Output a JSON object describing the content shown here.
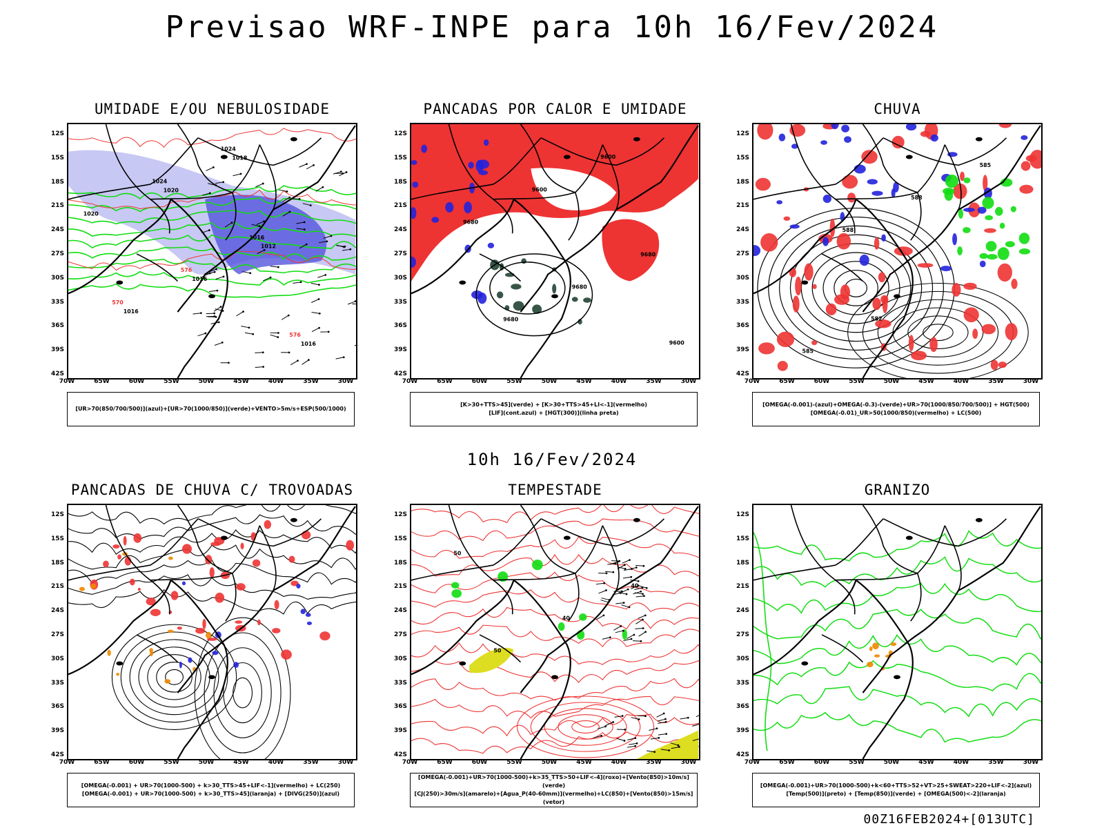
{
  "title": "Previsao WRF-INPE  para 10h 16/Fev/2024",
  "subtitle": "10h 16/Fev/2024",
  "footer": "00Z16FEB2024+[013UTC]",
  "axes": {
    "lat_labels": [
      "12S",
      "15S",
      "18S",
      "21S",
      "24S",
      "27S",
      "30S",
      "33S",
      "36S",
      "39S",
      "42S"
    ],
    "lon_labels": [
      "70W",
      "65W",
      "60W",
      "55W",
      "50W",
      "45W",
      "40W",
      "35W",
      "30W"
    ]
  },
  "colors": {
    "blue": "#2222dd",
    "light_blue": "#9999ee",
    "green": "#11dd11",
    "red": "#ee3333",
    "orange": "#ee8800",
    "yellow": "#dddd22",
    "dark_green": "#224433"
  },
  "panels": [
    {
      "title": "UMIDADE E/OU NEBULOSIDADE",
      "legend": [
        "[UR>70(850/700/500)](azul)+[UR>70(1000/850)](verde)+VENTO>5m/s+ESP(500/1000)"
      ],
      "contour_labels": [
        "1020",
        "1018",
        "1016",
        "1016",
        "1016",
        "1012",
        "1020",
        "1024",
        "1024",
        "576",
        "570",
        "576",
        "1016"
      ]
    },
    {
      "title": "PANCADAS POR CALOR E UMIDADE",
      "legend": [
        "[K>30+TTS>45](verde) + [K>30+TTS>45+LI<-1](vermelho)",
        "[LIF](cont.azul) + [HGT(300)](linha preta)"
      ],
      "contour_labels": [
        "9680",
        "9680",
        "9680",
        "9680",
        "9600",
        "9600",
        "9600"
      ]
    },
    {
      "title": "CHUVA",
      "legend": [
        "[OMEGA(-0.001)-(azul)+OMEGA(-0.3)-(verde)+UR>70(1000/850/700/500)] + HGT(500)",
        "[OMEGA(-0.01)_UR>50(1000/850)(vermelho) + LC(500)"
      ],
      "contour_labels": [
        "588",
        "588",
        "585",
        "585",
        "582"
      ]
    },
    {
      "title": "PANCADAS DE CHUVA C/ TROVOADAS",
      "legend": [
        "[OMEGA(-0.001) + UR>70(1000-500) + k>30_TTS>45+LIF<-1](vermelho) + LC(250)",
        "[OMEGA(-0.001) + UR>70(1000-500) + k>30_TTS>45](laranja) + [DIVG(250)](azul)"
      ],
      "contour_labels": []
    },
    {
      "title": "TEMPESTADE",
      "legend": [
        "[OMEGA(-0.001)+UR>70(1000-500)+k>35_TTS>50+LIF<-4](roxo)+[Vento(850)>10m/s](verde)",
        "[CJ(250)>30m/s](amarelo)+[Agua_P(40-60mm)](vermelho)+LC(850)+[Vento(850)>15m/s](vetor)"
      ],
      "contour_labels": [
        "50",
        "40",
        "40",
        "50"
      ]
    },
    {
      "title": "GRANIZO",
      "legend": [
        "[OMEGA(-0.001)+UR>70(1000-500)+k<60+TTS>52+VT>25+SWEAT>220+LIF<-2](azul)",
        "[Temp(500)](preto) + [Temp(850)](verde) + [OMEGA(500)<-2](laranja)"
      ],
      "contour_labels": []
    }
  ]
}
